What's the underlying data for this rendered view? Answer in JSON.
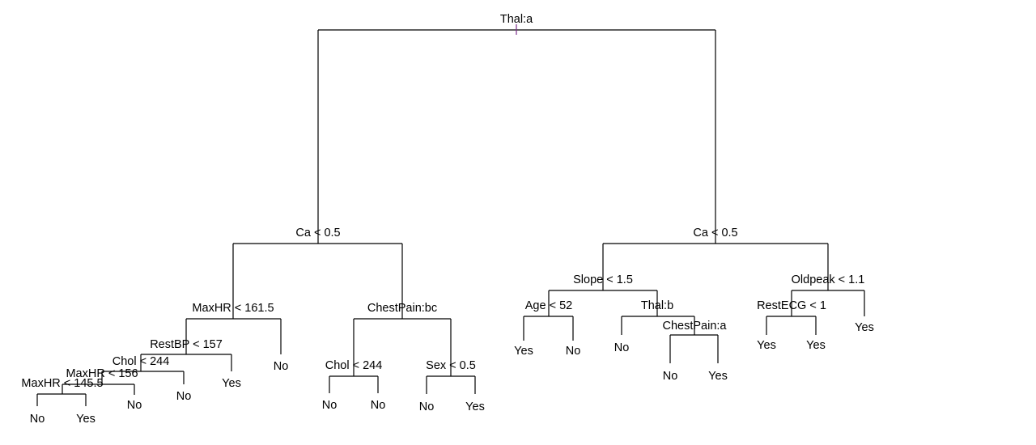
{
  "tree": {
    "label": "Thal:a",
    "marker": true,
    "left": {
      "label": "Ca < 0.5",
      "left": {
        "label": "MaxHR < 161.5",
        "left": {
          "label": "RestBP < 157",
          "left": {
            "label": "Chol < 244",
            "left": {
              "label": "MaxHR < 156",
              "left": {
                "label": "MaxHR < 145.5",
                "left": {
                  "leaf": "No"
                },
                "right": {
                  "leaf": "Yes"
                }
              },
              "right": {
                "leaf": "No"
              }
            },
            "right": {
              "leaf": "No"
            }
          },
          "right": {
            "leaf": "Yes"
          }
        },
        "right": {
          "leaf": "No"
        }
      },
      "right": {
        "label": "ChestPain:bc",
        "left": {
          "label": "Chol < 244",
          "left": {
            "leaf": "No"
          },
          "right": {
            "leaf": "No"
          }
        },
        "right": {
          "label": "Sex < 0.5",
          "left": {
            "leaf": "No"
          },
          "right": {
            "leaf": "Yes"
          }
        }
      }
    },
    "right": {
      "label": "Ca < 0.5",
      "left": {
        "label": "Slope < 1.5",
        "left": {
          "label": "Age < 52",
          "left": {
            "leaf": "Yes"
          },
          "right": {
            "leaf": "No"
          }
        },
        "right": {
          "label": "Thal:b",
          "left": {
            "leaf": "No"
          },
          "right": {
            "label": "ChestPain:a",
            "left": {
              "leaf": "No"
            },
            "right": {
              "leaf": "Yes"
            }
          }
        }
      },
      "right": {
        "label": "Oldpeak < 1.1",
        "left": {
          "label": "RestECG < 1",
          "left": {
            "leaf": "Yes"
          },
          "right": {
            "leaf": "Yes"
          }
        },
        "right": {
          "leaf": "Yes"
        }
      }
    }
  },
  "colors": {
    "line": "#000000",
    "text": "#000000",
    "marker": "#7a2a8a"
  }
}
